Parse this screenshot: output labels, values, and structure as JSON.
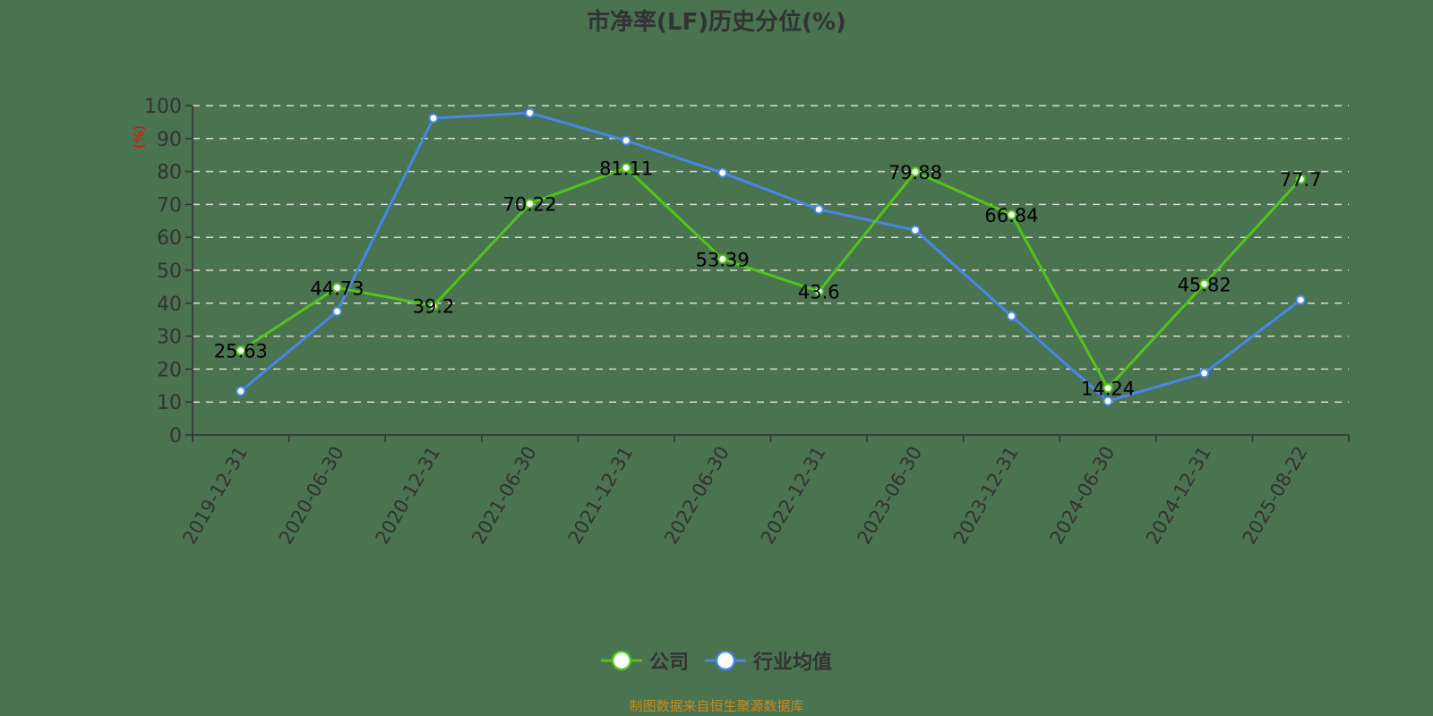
{
  "title": "市净率(LF)历史分位(%)",
  "footer": "制图数据来自恒生聚源数据库",
  "legend": [
    {
      "name": "公司",
      "color": "#52c41a"
    },
    {
      "name": "行业均值",
      "color": "#4a86e8"
    }
  ],
  "chart_data": {
    "type": "line",
    "title": "市净率(LF)历史分位(%)",
    "xlabel": "",
    "ylabel": "(%)",
    "ylim": [
      0,
      100
    ],
    "yticks": [
      0,
      10,
      20,
      30,
      40,
      50,
      60,
      70,
      80,
      90,
      100
    ],
    "grid": "horizontal dashed",
    "legend_position": "bottom",
    "categories": [
      "2019-12-31",
      "2020-06-30",
      "2020-12-31",
      "2021-06-30",
      "2021-12-31",
      "2022-06-30",
      "2022-12-31",
      "2023-06-30",
      "2023-12-31",
      "2024-06-30",
      "2024-12-31",
      "2025-08-22"
    ],
    "series": [
      {
        "name": "公司",
        "color": "#52c41a",
        "labeled": true,
        "values": [
          25.63,
          44.73,
          39.2,
          70.22,
          81.11,
          53.39,
          43.6,
          79.88,
          66.84,
          14.24,
          45.82,
          77.7
        ]
      },
      {
        "name": "行业均值",
        "color": "#4a86e8",
        "labeled": false,
        "values": [
          13.3,
          37.5,
          96.2,
          97.8,
          89.4,
          79.6,
          68.5,
          62.2,
          36.1,
          10.3,
          18.8,
          41.0
        ]
      }
    ]
  }
}
